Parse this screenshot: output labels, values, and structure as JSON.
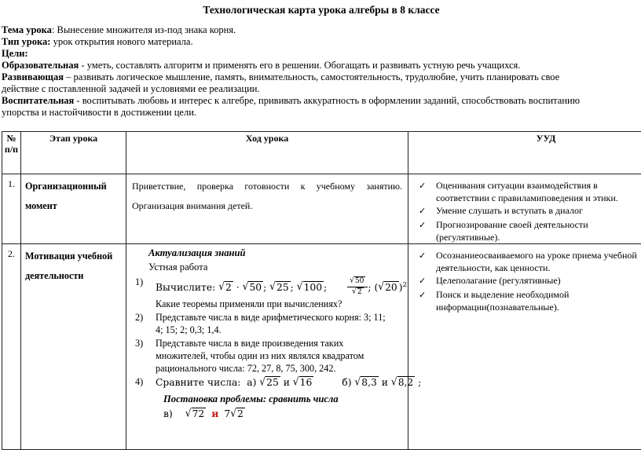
{
  "colors": {
    "text": "#000000",
    "accent_red": "#c21b1b",
    "border": "#222222"
  },
  "title": "Технологическая карта урока алгебры в 8 классе",
  "intro": [
    {
      "lead": "Тема урока",
      "rest": ": Вынесение множителя из-под знака корня."
    },
    {
      "lead": "Тип урока:",
      "rest": " урок открытия нового материала."
    },
    {
      "lead": "Цели:",
      "rest": ""
    },
    {
      "lead": "Образовательная",
      "rest": "  - уметь, составлять алгоритм и применять его в решении.  Обогащать и развивать устную речь учащихся."
    },
    {
      "lead": "Развивающая",
      "rest": " – развивать логическое мышление, память, внимательность, самостоятельность, трудолюбие, учить планировать свое\nдействие с поставленной задачей и условиями ее реализации."
    },
    {
      "lead": "Воспитательная",
      "rest": " -  воспитывать любовь и интерес к алгебре, прививать аккуратность в оформлении заданий, способствовать воспитанию\nупорства и настойчивости в достижении цели."
    }
  ],
  "table": {
    "headers": {
      "num": "№\nп/п",
      "stage": "Этап урока",
      "flow": "Ход урока",
      "uud": "УУД"
    },
    "row1": {
      "num": "1.",
      "stage": "Организационный\nмомент",
      "flow_lines": [
        "Приветствие, проверка готовности к учебному занятию.",
        "Организация внимания детей."
      ],
      "uud": [
        "Оценивания ситуации взаимодействия в\nсоответствии с правиламиповедения и этики.",
        "Умение слушать и вступать в диалог",
        "Прогнозирование своей деятельности\n(регулятивные)."
      ]
    },
    "row2": {
      "num": "2.",
      "stage": "Мотивация учебной\nдеятельности",
      "flow": {
        "heading": "Актуализация знаний",
        "subheading": "Устная работа",
        "items": [
          {
            "num": "1)",
            "math": [
              {
                "t": "text",
                "v": "Вычислите: "
              },
              {
                "t": "sqrt",
                "v": "2"
              },
              {
                "t": "text",
                "v": " · "
              },
              {
                "t": "sqrt",
                "v": "50"
              },
              {
                "t": "text",
                "v": "; "
              },
              {
                "t": "sqrt",
                "v": "25"
              },
              {
                "t": "text",
                "v": "; "
              },
              {
                "t": "sqrt",
                "v": "100"
              },
              {
                "t": "text",
                "v": ";"
              },
              {
                "t": "space",
                "v": 26
              },
              {
                "t": "frac",
                "num": [
                  {
                    "t": "sqrt",
                    "v": "50"
                  }
                ],
                "den": [
                  {
                    "t": "sqrt",
                    "v": "2"
                  }
                ]
              },
              {
                "t": "text",
                "v": "; ("
              },
              {
                "t": "sqrt",
                "v": "20"
              },
              {
                "t": "text",
                "v": ")"
              },
              {
                "t": "sup",
                "v": "2"
              }
            ],
            "line2": "Какие теоремы применяли при вычислениях?"
          },
          {
            "num": "2)",
            "text": "Представьте числа в виде арифметического корня: 3; 11;\n4; 15; 2; 0,3; 1,4."
          },
          {
            "num": "3)",
            "text": "Представьте числа в виде произведения таких\nмножителей, чтобы один из них являлся квадратом\nрационального числа: 72, 27, 8, 75, 300, 242."
          },
          {
            "num": "4)",
            "math": [
              {
                "t": "text",
                "v": "Сравните числа:  а) "
              },
              {
                "t": "sqrt",
                "v": "25"
              },
              {
                "t": "text",
                "v": " и "
              },
              {
                "t": "sqrt",
                "v": "16"
              },
              {
                "t": "space",
                "v": 36
              },
              {
                "t": "text",
                "v": "б) "
              },
              {
                "t": "sqrt",
                "v": "8,3"
              },
              {
                "t": "text",
                "v": " и "
              },
              {
                "t": "sqrt",
                "v": "8,2"
              },
              {
                "t": "text",
                "v": " ;"
              }
            ]
          }
        ],
        "problem": "Постановка проблемы: сравнить числа",
        "final_math": [
          {
            "t": "text",
            "v": "в)"
          },
          {
            "t": "space",
            "v": 16
          },
          {
            "t": "sqrt",
            "v": "72"
          },
          {
            "t": "space",
            "v": 7
          },
          {
            "t": "red",
            "v": "и"
          },
          {
            "t": "space",
            "v": 7
          },
          {
            "t": "text",
            "v": "7"
          },
          {
            "t": "sqrt",
            "v": "2"
          }
        ]
      },
      "uud": [
        "Осознаниеосваиваемого на уроке приема учебной\nдеятельности, как ценности.",
        "Целеполагание (регулятивные)",
        "Поиск и выделение необходимой\nинформации(познавательные)."
      ]
    }
  }
}
